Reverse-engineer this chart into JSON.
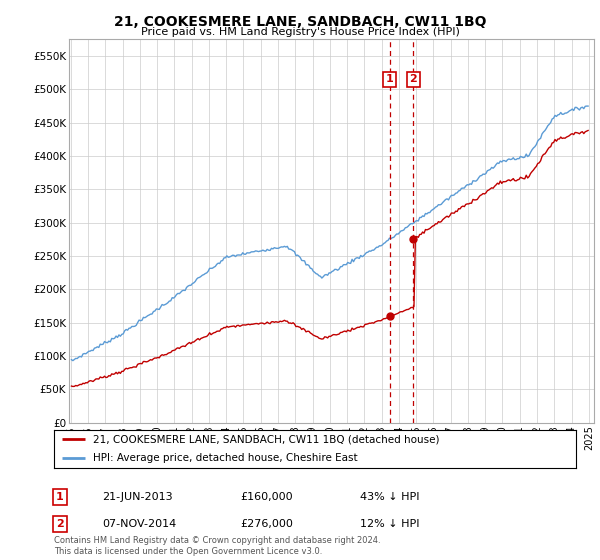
{
  "title": "21, COOKESMERE LANE, SANDBACH, CW11 1BQ",
  "subtitle": "Price paid vs. HM Land Registry's House Price Index (HPI)",
  "legend_line1": "21, COOKESMERE LANE, SANDBACH, CW11 1BQ (detached house)",
  "legend_line2": "HPI: Average price, detached house, Cheshire East",
  "sale1_date": "21-JUN-2013",
  "sale1_price": 160000,
  "sale1_label": "43% ↓ HPI",
  "sale2_date": "07-NOV-2014",
  "sale2_price": 276000,
  "sale2_label": "12% ↓ HPI",
  "footnote": "Contains HM Land Registry data © Crown copyright and database right 2024.\nThis data is licensed under the Open Government Licence v3.0.",
  "hpi_color": "#5b9bd5",
  "price_color": "#c00000",
  "vline_color": "#c00000",
  "ylim": [
    0,
    575000
  ],
  "yticks": [
    0,
    50000,
    100000,
    150000,
    200000,
    250000,
    300000,
    350000,
    400000,
    450000,
    500000,
    550000
  ],
  "background_color": "#ffffff",
  "grid_color": "#cccccc",
  "sale1_t": 2013.46,
  "sale2_t": 2014.84
}
